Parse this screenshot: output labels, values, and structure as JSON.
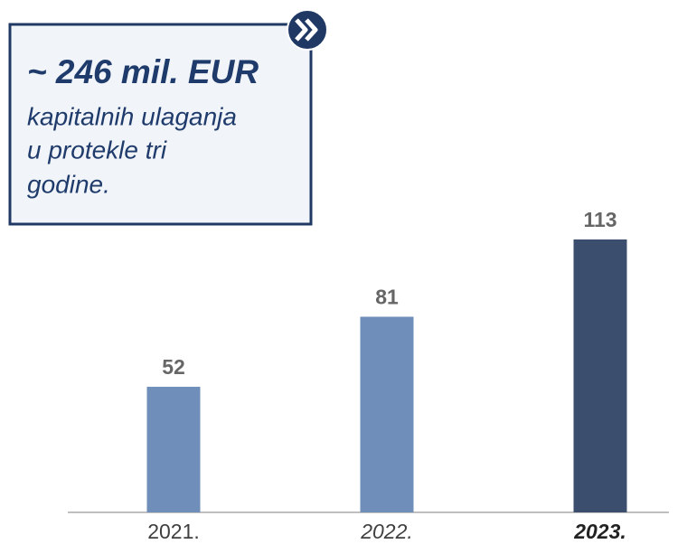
{
  "chart_data": {
    "type": "bar",
    "categories": [
      "2021.",
      "2022.",
      "2023."
    ],
    "values": [
      52,
      81,
      113
    ],
    "colors": [
      "#6f8fba",
      "#6f8fba",
      "#3b4e6e"
    ],
    "annotation": {
      "title": "~ 246 mil. EUR",
      "lines": [
        "kapitalnih ulaganja",
        "u protekle tri",
        "godine."
      ]
    }
  }
}
